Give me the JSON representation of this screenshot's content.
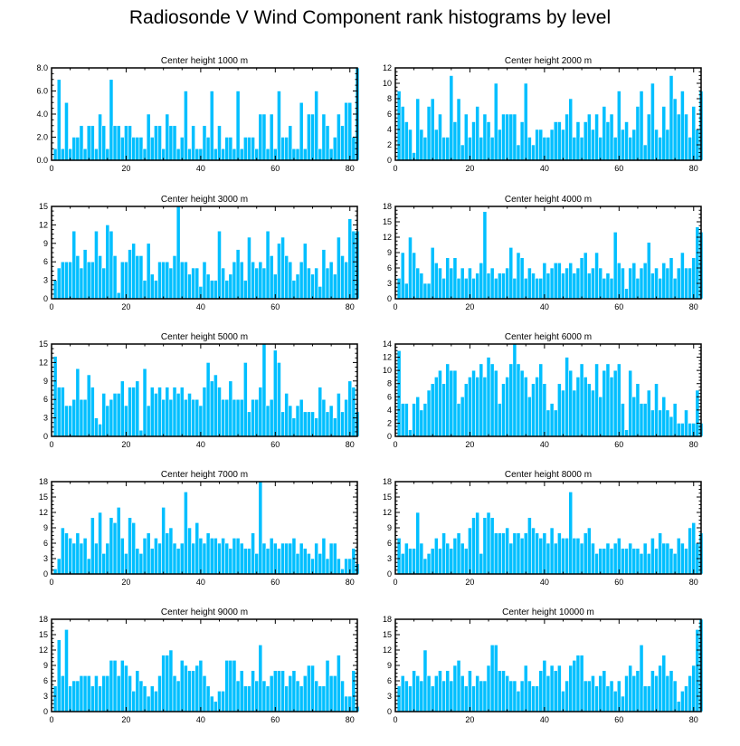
{
  "title": "Radiosonde V Wind Component rank histograms by level",
  "chart_data": [
    {
      "type": "bar",
      "title": "Center height 1000 m",
      "xlim": [
        0,
        82
      ],
      "ylim": [
        0,
        8
      ],
      "yticks": [
        0,
        2,
        4,
        6,
        8
      ],
      "ytick_labels": [
        "0.0",
        "2.0",
        "4.0",
        "6.0",
        "8.0"
      ],
      "xticks": [
        0,
        20,
        40,
        60,
        80
      ],
      "xtick_labels": [
        "0",
        "20",
        "40",
        "60",
        "80"
      ],
      "values": [
        1,
        7,
        1,
        5,
        1,
        2,
        2,
        3,
        1,
        3,
        3,
        1,
        4,
        3,
        1,
        7,
        3,
        3,
        2,
        3,
        3,
        2,
        2,
        2,
        1,
        4,
        2,
        3,
        3,
        1,
        4,
        3,
        3,
        1,
        2,
        6,
        1,
        3,
        1,
        1,
        3,
        2,
        6,
        1,
        3,
        1,
        2,
        2,
        1,
        6,
        1,
        2,
        2,
        2,
        1,
        4,
        4,
        1,
        4,
        1,
        6,
        2,
        2,
        3,
        1,
        1,
        5,
        1,
        4,
        4,
        6,
        1,
        4,
        3,
        1,
        2,
        4,
        3,
        5,
        5,
        2,
        8
      ]
    },
    {
      "type": "bar",
      "title": "Center height 2000 m",
      "xlim": [
        0,
        82
      ],
      "ylim": [
        0,
        12
      ],
      "yticks": [
        0,
        2,
        4,
        6,
        8,
        10,
        12
      ],
      "ytick_labels": [
        "0",
        "2",
        "4",
        "6",
        "8",
        "10",
        "12"
      ],
      "xticks": [
        0,
        20,
        40,
        60,
        80
      ],
      "xtick_labels": [
        "0",
        "20",
        "40",
        "60",
        "80"
      ],
      "values": [
        9,
        7,
        5,
        4,
        1,
        8,
        4,
        3,
        7,
        8,
        4,
        6,
        3,
        3,
        11,
        5,
        8,
        2,
        6,
        3,
        5,
        7,
        3,
        6,
        5,
        3,
        10,
        4,
        6,
        6,
        6,
        6,
        2,
        5,
        10,
        3,
        2,
        4,
        4,
        3,
        3,
        4,
        5,
        5,
        4,
        6,
        8,
        3,
        5,
        3,
        5,
        6,
        4,
        6,
        3,
        7,
        5,
        6,
        3,
        9,
        4,
        5,
        3,
        4,
        7,
        9,
        2,
        6,
        10,
        4,
        3,
        7,
        4,
        11,
        8,
        6,
        9,
        6,
        3,
        7,
        4,
        9
      ]
    },
    {
      "type": "bar",
      "title": "Center height 3000 m",
      "xlim": [
        0,
        82
      ],
      "ylim": [
        0,
        15
      ],
      "yticks": [
        0,
        3,
        6,
        9,
        12,
        15
      ],
      "ytick_labels": [
        "0",
        "3",
        "6",
        "9",
        "12",
        "15"
      ],
      "xticks": [
        0,
        20,
        40,
        60,
        80
      ],
      "xtick_labels": [
        "0",
        "20",
        "40",
        "60",
        "80"
      ],
      "values": [
        3,
        5,
        6,
        6,
        6,
        11,
        7,
        5,
        8,
        6,
        6,
        11,
        7,
        5,
        12,
        11,
        7,
        1,
        6,
        6,
        8,
        9,
        7,
        7,
        3,
        9,
        4,
        3,
        6,
        6,
        6,
        5,
        7,
        15,
        6,
        6,
        4,
        5,
        5,
        2,
        6,
        4,
        3,
        3,
        11,
        5,
        3,
        4,
        6,
        8,
        6,
        3,
        10,
        6,
        5,
        6,
        5,
        11,
        7,
        4,
        9,
        10,
        7,
        6,
        3,
        4,
        6,
        9,
        5,
        4,
        5,
        2,
        8,
        5,
        6,
        4,
        10,
        7,
        6,
        13,
        11,
        11
      ]
    },
    {
      "type": "bar",
      "title": "Center height 4000 m",
      "xlim": [
        0,
        82
      ],
      "ylim": [
        0,
        18
      ],
      "yticks": [
        0,
        3,
        6,
        9,
        12,
        15,
        18
      ],
      "ytick_labels": [
        "0",
        "3",
        "6",
        "9",
        "12",
        "15",
        "18"
      ],
      "xticks": [
        0,
        20,
        40,
        60,
        80
      ],
      "xtick_labels": [
        "0",
        "20",
        "40",
        "60",
        "80"
      ],
      "values": [
        4,
        9,
        3,
        12,
        9,
        6,
        5,
        3,
        3,
        10,
        7,
        6,
        4,
        8,
        6,
        8,
        4,
        6,
        4,
        6,
        4,
        5,
        7,
        17,
        5,
        6,
        4,
        5,
        5,
        6,
        10,
        4,
        9,
        8,
        4,
        6,
        5,
        4,
        4,
        7,
        5,
        6,
        7,
        7,
        5,
        6,
        7,
        5,
        6,
        8,
        9,
        5,
        6,
        9,
        6,
        4,
        5,
        4,
        13,
        7,
        6,
        2,
        6,
        7,
        4,
        6,
        7,
        11,
        5,
        6,
        4,
        7,
        6,
        8,
        4,
        6,
        9,
        6,
        6,
        8,
        14,
        13
      ]
    },
    {
      "type": "bar",
      "title": "Center height 5000 m",
      "xlim": [
        0,
        82
      ],
      "ylim": [
        0,
        15
      ],
      "yticks": [
        0,
        3,
        6,
        9,
        12,
        15
      ],
      "ytick_labels": [
        "0",
        "3",
        "6",
        "9",
        "12",
        "15"
      ],
      "xticks": [
        0,
        20,
        40,
        60,
        80
      ],
      "xtick_labels": [
        "0",
        "20",
        "40",
        "60",
        "80"
      ],
      "values": [
        13,
        8,
        8,
        5,
        5,
        6,
        11,
        6,
        6,
        10,
        8,
        3,
        2,
        7,
        5,
        6,
        7,
        7,
        9,
        5,
        8,
        8,
        9,
        1,
        11,
        5,
        8,
        7,
        8,
        6,
        8,
        6,
        8,
        7,
        8,
        6,
        7,
        6,
        6,
        5,
        8,
        12,
        9,
        10,
        8,
        6,
        6,
        9,
        6,
        6,
        6,
        12,
        4,
        6,
        6,
        8,
        15,
        5,
        6,
        14,
        12,
        4,
        7,
        5,
        3,
        5,
        6,
        4,
        4,
        4,
        3,
        8,
        6,
        4,
        5,
        3,
        7,
        4,
        6,
        9,
        8,
        4
      ]
    },
    {
      "type": "bar",
      "title": "Center height 6000 m",
      "xlim": [
        0,
        82
      ],
      "ylim": [
        0,
        14
      ],
      "yticks": [
        0,
        2,
        4,
        6,
        8,
        10,
        12,
        14
      ],
      "ytick_labels": [
        "0",
        "2",
        "4",
        "6",
        "8",
        "10",
        "12",
        "14"
      ],
      "xticks": [
        0,
        20,
        40,
        60,
        80
      ],
      "xtick_labels": [
        "0",
        "20",
        "40",
        "60",
        "80"
      ],
      "values": [
        13,
        5,
        5,
        1,
        5,
        6,
        4,
        5,
        7,
        8,
        9,
        10,
        8,
        11,
        10,
        10,
        5,
        6,
        8,
        9,
        10,
        9,
        11,
        9,
        12,
        11,
        10,
        5,
        8,
        9,
        11,
        14,
        11,
        10,
        9,
        6,
        8,
        9,
        11,
        8,
        4,
        5,
        4,
        8,
        7,
        12,
        10,
        7,
        9,
        11,
        9,
        8,
        7,
        11,
        6,
        10,
        11,
        9,
        10,
        11,
        5,
        1,
        10,
        6,
        8,
        5,
        5,
        7,
        4,
        8,
        4,
        6,
        4,
        3,
        5,
        2,
        2,
        4,
        2,
        2,
        7,
        2
      ]
    },
    {
      "type": "bar",
      "title": "Center height 7000 m",
      "xlim": [
        0,
        82
      ],
      "ylim": [
        0,
        18
      ],
      "yticks": [
        0,
        3,
        6,
        9,
        12,
        15,
        18
      ],
      "ytick_labels": [
        "0",
        "3",
        "6",
        "9",
        "12",
        "15",
        "18"
      ],
      "xticks": [
        0,
        20,
        40,
        60,
        80
      ],
      "xtick_labels": [
        "0",
        "20",
        "40",
        "60",
        "80"
      ],
      "values": [
        1,
        3,
        9,
        8,
        7,
        6,
        8,
        6,
        7,
        3,
        11,
        6,
        12,
        4,
        6,
        11,
        10,
        13,
        7,
        4,
        11,
        10,
        5,
        4,
        7,
        8,
        5,
        7,
        6,
        13,
        8,
        9,
        6,
        5,
        6,
        16,
        9,
        6,
        10,
        7,
        6,
        8,
        7,
        7,
        6,
        7,
        6,
        5,
        7,
        7,
        6,
        5,
        5,
        8,
        4,
        18,
        6,
        5,
        7,
        6,
        5,
        6,
        6,
        6,
        7,
        4,
        6,
        5,
        4,
        3,
        6,
        4,
        7,
        3,
        6,
        6,
        3,
        1,
        3,
        3,
        5,
        2
      ]
    },
    {
      "type": "bar",
      "title": "Center height 8000 m",
      "xlim": [
        0,
        82
      ],
      "ylim": [
        0,
        18
      ],
      "yticks": [
        0,
        3,
        6,
        9,
        12,
        15,
        18
      ],
      "ytick_labels": [
        "0",
        "3",
        "6",
        "9",
        "12",
        "15",
        "18"
      ],
      "xticks": [
        0,
        20,
        40,
        60,
        80
      ],
      "xtick_labels": [
        "0",
        "20",
        "40",
        "60",
        "80"
      ],
      "values": [
        7,
        4,
        6,
        5,
        5,
        12,
        6,
        3,
        4,
        5,
        7,
        5,
        8,
        6,
        5,
        7,
        8,
        6,
        5,
        9,
        11,
        12,
        4,
        11,
        12,
        11,
        8,
        8,
        8,
        9,
        6,
        8,
        8,
        7,
        8,
        11,
        9,
        8,
        7,
        8,
        6,
        9,
        6,
        8,
        7,
        7,
        16,
        7,
        7,
        6,
        8,
        9,
        6,
        4,
        5,
        5,
        6,
        5,
        6,
        7,
        5,
        5,
        6,
        5,
        5,
        4,
        6,
        4,
        7,
        5,
        8,
        6,
        6,
        5,
        4,
        7,
        6,
        5,
        9,
        10,
        6,
        8
      ]
    },
    {
      "type": "bar",
      "title": "Center height 9000 m",
      "xlim": [
        0,
        82
      ],
      "ylim": [
        0,
        18
      ],
      "yticks": [
        0,
        3,
        6,
        9,
        12,
        15,
        18
      ],
      "ytick_labels": [
        "0",
        "3",
        "6",
        "9",
        "12",
        "15",
        "18"
      ],
      "xticks": [
        0,
        20,
        40,
        60,
        80
      ],
      "xtick_labels": [
        "0",
        "20",
        "40",
        "60",
        "80"
      ],
      "values": [
        5,
        14,
        7,
        16,
        5,
        6,
        6,
        7,
        7,
        7,
        5,
        7,
        5,
        7,
        7,
        10,
        10,
        7,
        10,
        9,
        7,
        4,
        8,
        6,
        5,
        3,
        5,
        4,
        7,
        11,
        11,
        12,
        7,
        6,
        10,
        9,
        8,
        8,
        9,
        10,
        7,
        5,
        3,
        2,
        4,
        4,
        10,
        10,
        10,
        6,
        8,
        5,
        5,
        8,
        6,
        13,
        6,
        5,
        7,
        8,
        8,
        8,
        5,
        7,
        8,
        6,
        5,
        7,
        9,
        9,
        6,
        5,
        5,
        10,
        7,
        7,
        11,
        6,
        3,
        3,
        8,
        1
      ]
    },
    {
      "type": "bar",
      "title": "Center height 10000 m",
      "xlim": [
        0,
        82
      ],
      "ylim": [
        0,
        18
      ],
      "yticks": [
        0,
        3,
        6,
        9,
        12,
        15,
        18
      ],
      "ytick_labels": [
        "0",
        "3",
        "6",
        "9",
        "12",
        "15",
        "18"
      ],
      "xticks": [
        0,
        20,
        40,
        60,
        80
      ],
      "xtick_labels": [
        "0",
        "20",
        "40",
        "60",
        "80"
      ],
      "values": [
        5,
        7,
        6,
        5,
        8,
        7,
        6,
        12,
        7,
        5,
        7,
        8,
        6,
        8,
        6,
        9,
        10,
        7,
        5,
        8,
        5,
        7,
        6,
        6,
        9,
        13,
        13,
        8,
        8,
        7,
        6,
        6,
        4,
        6,
        9,
        6,
        5,
        5,
        8,
        10,
        7,
        9,
        8,
        9,
        4,
        6,
        9,
        10,
        11,
        11,
        6,
        6,
        7,
        5,
        7,
        8,
        5,
        6,
        4,
        6,
        3,
        7,
        9,
        7,
        8,
        13,
        5,
        5,
        8,
        7,
        9,
        11,
        7,
        8,
        6,
        2,
        4,
        5,
        7,
        9,
        16,
        18
      ]
    }
  ]
}
